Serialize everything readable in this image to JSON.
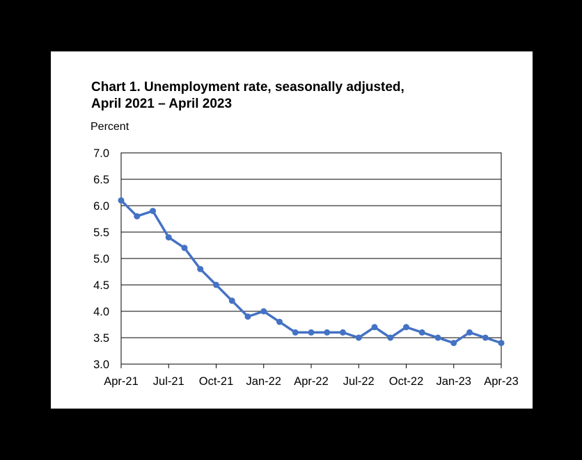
{
  "chart_data": {
    "type": "line",
    "title_line1": "Chart 1. Unemployment rate, seasonally adjusted,",
    "title_line2": "April 2021 – April 2023",
    "ylabel": "Percent",
    "xlabel": "",
    "ylim": [
      3.0,
      7.0
    ],
    "y_ticks": [
      "3.0",
      "3.5",
      "4.0",
      "4.5",
      "5.0",
      "5.5",
      "6.0",
      "6.5",
      "7.0"
    ],
    "grid": "horizontal",
    "x": [
      "Apr-21",
      "May-21",
      "Jun-21",
      "Jul-21",
      "Aug-21",
      "Sep-21",
      "Oct-21",
      "Nov-21",
      "Dec-21",
      "Jan-22",
      "Feb-22",
      "Mar-22",
      "Apr-22",
      "May-22",
      "Jun-22",
      "Jul-22",
      "Aug-22",
      "Sep-22",
      "Oct-22",
      "Nov-22",
      "Dec-22",
      "Jan-23",
      "Feb-23",
      "Mar-23",
      "Apr-23"
    ],
    "x_tick_labels": [
      "Apr-21",
      "Jul-21",
      "Oct-21",
      "Jan-22",
      "Apr-22",
      "Jul-22",
      "Oct-22",
      "Jan-23",
      "Apr-23"
    ],
    "series": [
      {
        "values": [
          6.1,
          5.8,
          5.9,
          5.4,
          5.2,
          4.8,
          4.5,
          4.2,
          3.9,
          4.0,
          3.8,
          3.6,
          3.6,
          3.6,
          3.6,
          3.5,
          3.7,
          3.5,
          3.7,
          3.6,
          3.5,
          3.4,
          3.6,
          3.5,
          3.4
        ],
        "color": "#4472C4"
      }
    ]
  }
}
